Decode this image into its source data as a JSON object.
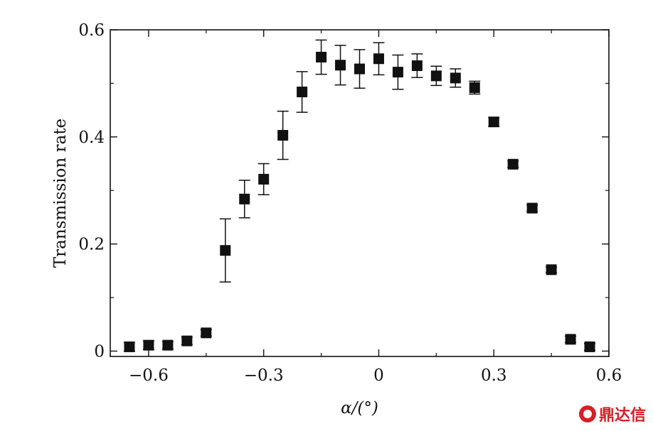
{
  "chart_data": {
    "type": "scatter",
    "title": "",
    "xlabel": "α/(°)",
    "ylabel": "Transmission rate",
    "xlim": [
      -0.7,
      0.6
    ],
    "ylim": [
      -0.01,
      0.6
    ],
    "x_ticks": [
      -0.6,
      -0.3,
      0,
      0.3,
      0.6
    ],
    "x_tick_labels": [
      "−0.6",
      "−0.3",
      "0",
      "0.3",
      "0.6"
    ],
    "y_ticks": [
      0,
      0.2,
      0.4,
      0.6
    ],
    "y_tick_labels": [
      "0",
      "0.2",
      "0.4",
      "0.6"
    ],
    "marker": "square",
    "color": "#111111",
    "grid": false,
    "series": [
      {
        "x": [
          -0.65,
          -0.6,
          -0.55,
          -0.5,
          -0.45,
          -0.4,
          -0.35,
          -0.3,
          -0.25,
          -0.2,
          -0.15,
          -0.1,
          -0.05,
          0.0,
          0.05,
          0.1,
          0.15,
          0.2,
          0.25,
          0.3,
          0.35,
          0.4,
          0.45,
          0.5,
          0.55
        ],
        "y": [
          0.008,
          0.011,
          0.011,
          0.019,
          0.034,
          0.188,
          0.284,
          0.321,
          0.403,
          0.484,
          0.549,
          0.534,
          0.527,
          0.546,
          0.521,
          0.533,
          0.514,
          0.51,
          0.492,
          0.428,
          0.349,
          0.267,
          0.152,
          0.022,
          0.008
        ],
        "yerr": [
          0.008,
          0.008,
          0.007,
          0.007,
          0.006,
          0.059,
          0.035,
          0.029,
          0.045,
          0.038,
          0.032,
          0.037,
          0.036,
          0.03,
          0.032,
          0.022,
          0.018,
          0.017,
          0.012,
          0.008,
          0.006,
          0.006,
          0.005,
          0.006,
          0.006
        ]
      }
    ]
  },
  "watermark": {
    "text": "鼎达信",
    "color": "#d61f26"
  }
}
